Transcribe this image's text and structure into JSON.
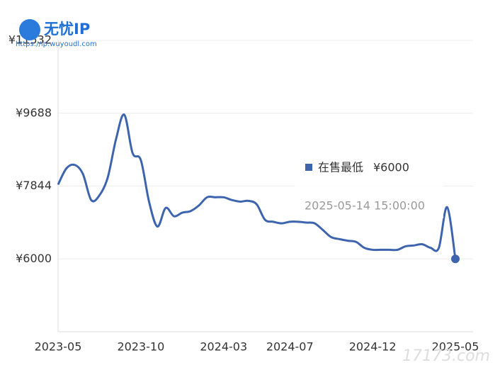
{
  "watermark": {
    "brand": "无忧IP",
    "url": "https://ip.wuyoudl.com",
    "corner": "17173.com"
  },
  "chart_data": {
    "type": "line",
    "categories": [
      "2023-05",
      null,
      null,
      null,
      null,
      null,
      null,
      null,
      null,
      null,
      "2023-10",
      null,
      null,
      null,
      null,
      null,
      null,
      null,
      null,
      null,
      "2024-03",
      null,
      null,
      null,
      null,
      null,
      null,
      null,
      "2024-07",
      null,
      null,
      null,
      null,
      null,
      null,
      null,
      null,
      null,
      "2024-12",
      null,
      null,
      null,
      null,
      null,
      null,
      null,
      null,
      null,
      "2025-05"
    ],
    "series": [
      {
        "name": "在售最低",
        "color": "#3d64ad",
        "values": [
          7880,
          8290,
          8380,
          8150,
          7490,
          7610,
          8060,
          9030,
          9650,
          8680,
          8500,
          7440,
          6820,
          7290,
          7080,
          7170,
          7210,
          7350,
          7560,
          7560,
          7560,
          7490,
          7450,
          7470,
          7380,
          6990,
          6940,
          6900,
          6940,
          6940,
          6920,
          6900,
          6730,
          6550,
          6500,
          6460,
          6430,
          6280,
          6230,
          6230,
          6230,
          6230,
          6320,
          6340,
          6370,
          6280,
          6280,
          7310,
          6000
        ]
      }
    ],
    "ylim": [
      4156,
      11532
    ],
    "yticks": [
      {
        "value": 6000,
        "label": "¥6000"
      },
      {
        "value": 7844,
        "label": "¥7844"
      },
      {
        "value": 9688,
        "label": "¥9688"
      },
      {
        "value": 11532,
        "label": "¥11532"
      }
    ],
    "grid": true,
    "tooltip": {
      "value_label": "¥6000",
      "time": "2025-05-14 15:00:00"
    }
  }
}
